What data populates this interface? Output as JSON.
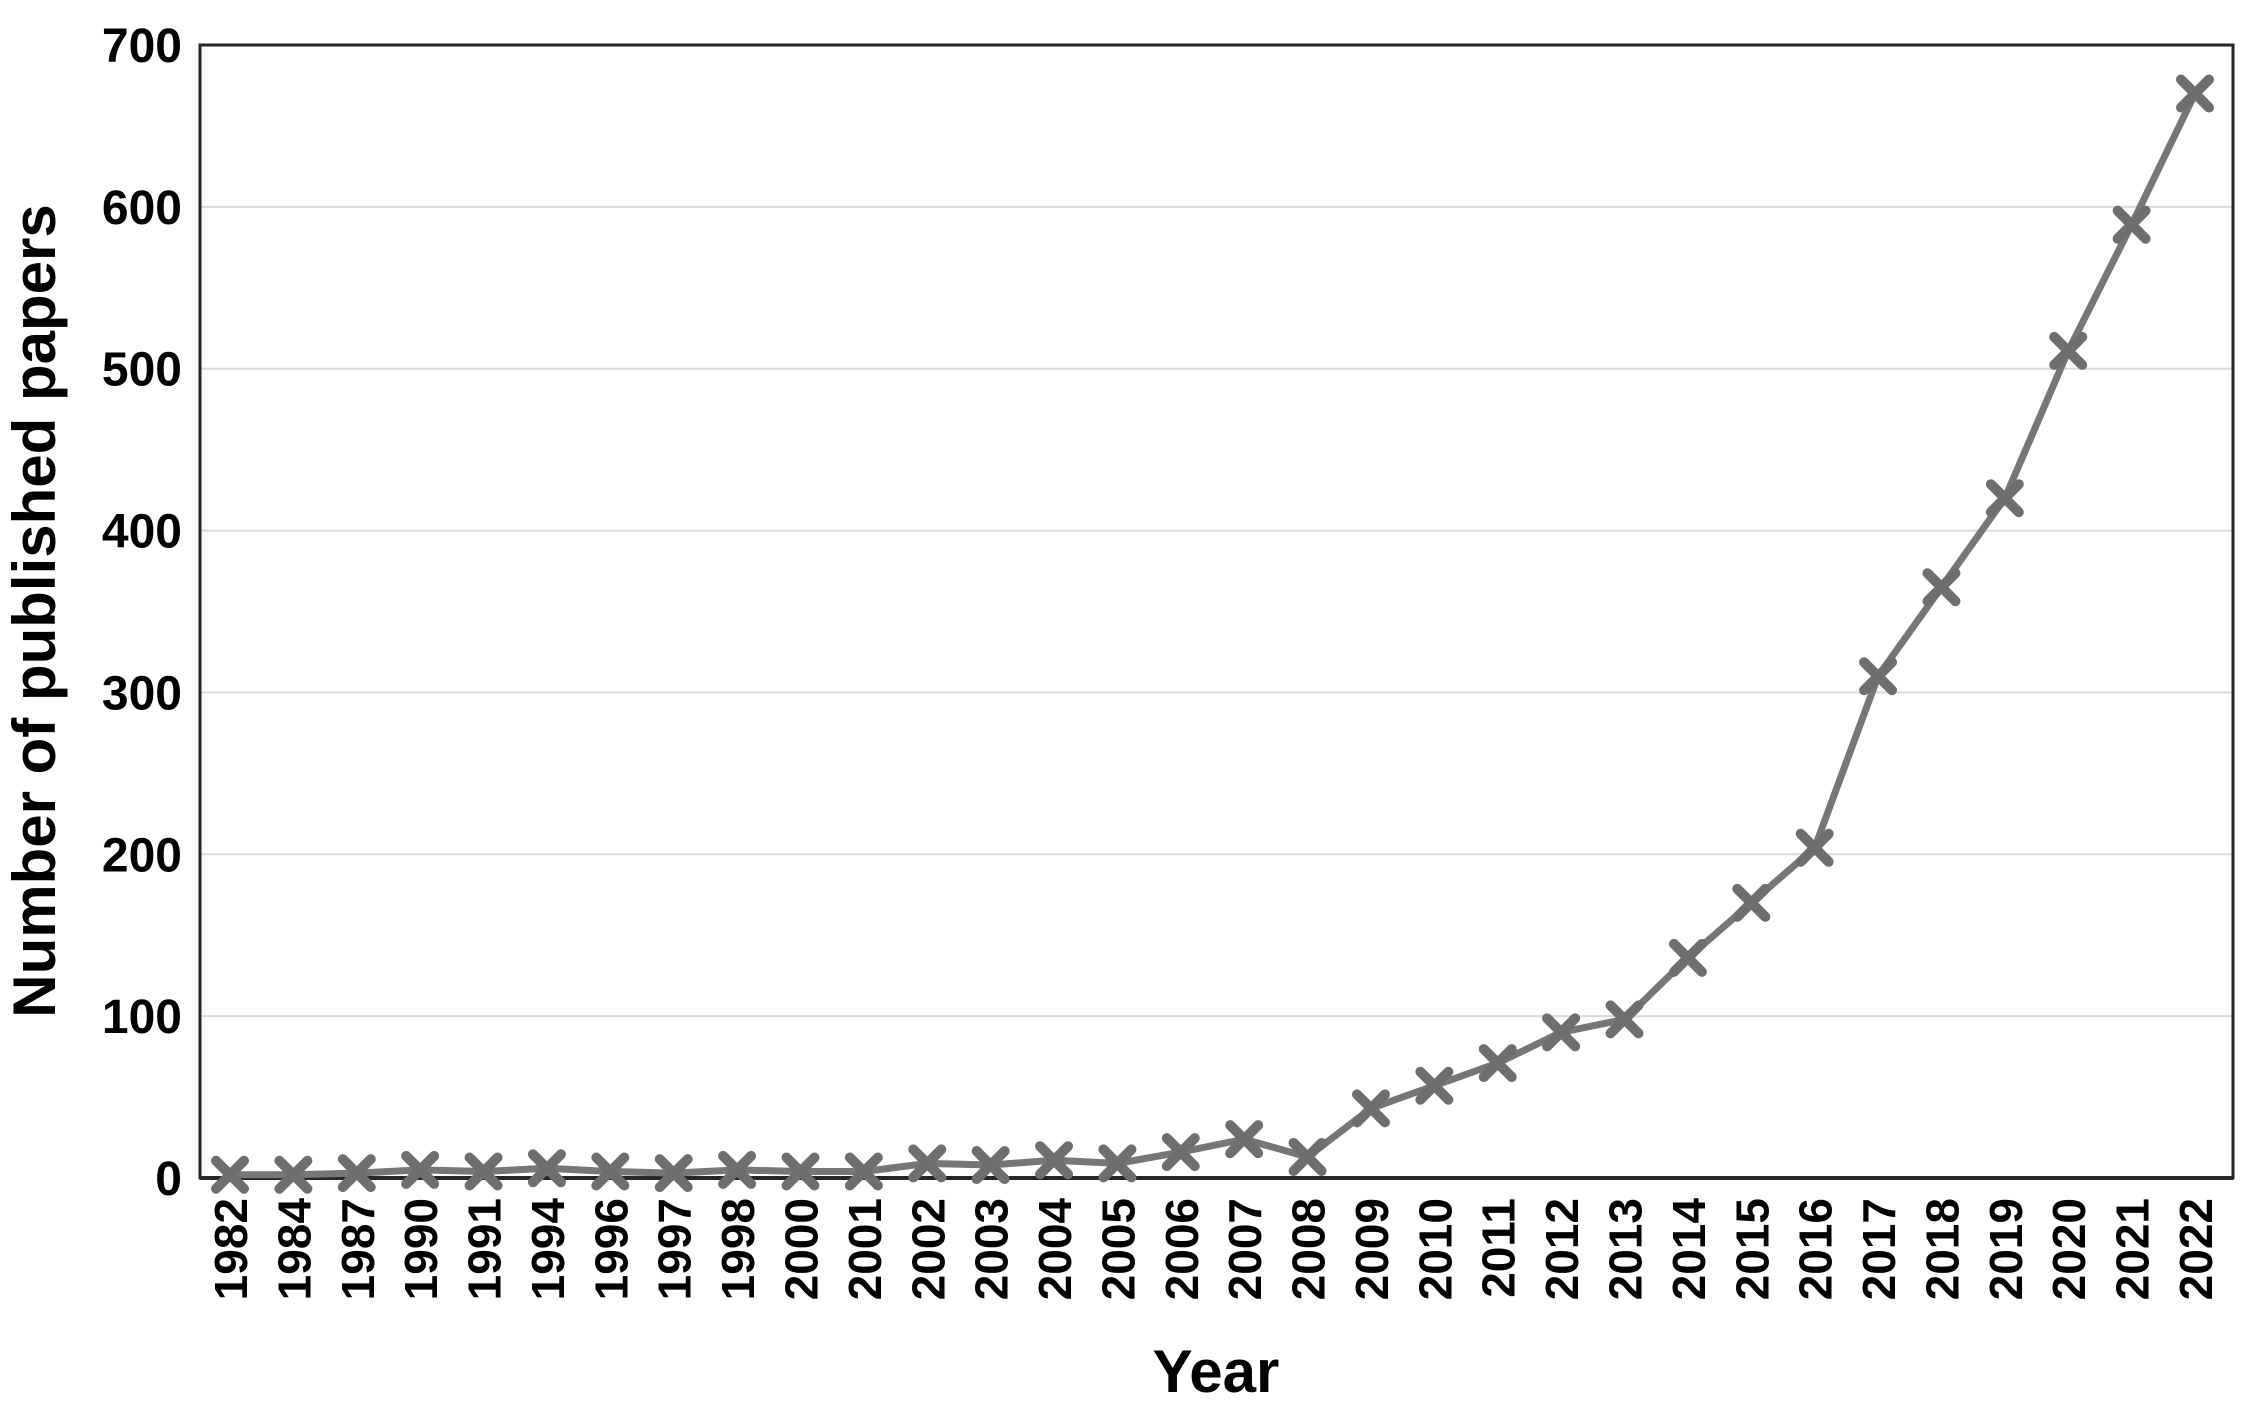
{
  "chart_data": {
    "type": "line",
    "title": "",
    "xlabel": "Year",
    "ylabel": "Number of published papers",
    "categories": [
      "1982",
      "1984",
      "1987",
      "1990",
      "1991",
      "1994",
      "1996",
      "1997",
      "1998",
      "2000",
      "2001",
      "2002",
      "2003",
      "2004",
      "2005",
      "2006",
      "2007",
      "2008",
      "2009",
      "2010",
      "2011",
      "2012",
      "2013",
      "2014",
      "2015",
      "2016",
      "2017",
      "2018",
      "2019",
      "2020",
      "2021",
      "2022"
    ],
    "series": [
      {
        "name": "Number of published papers",
        "values": [
          2,
          2,
          3,
          5,
          4,
          6,
          4,
          3,
          5,
          4,
          4,
          9,
          8,
          11,
          9,
          16,
          24,
          13,
          43,
          57,
          71,
          90,
          98,
          136,
          170,
          204,
          310,
          365,
          420,
          511,
          589,
          670
        ]
      }
    ],
    "ylim": [
      0,
      700
    ],
    "yticks": [
      0,
      100,
      200,
      300,
      400,
      500,
      600,
      700
    ],
    "grid": "horizontal",
    "legend": "none",
    "marker": "x",
    "colors": {
      "line": "#767676",
      "marker": "#6e6e6e",
      "grid": "#d9d9d9",
      "axis": "#262626",
      "text": "#000000",
      "background": "#ffffff"
    }
  }
}
